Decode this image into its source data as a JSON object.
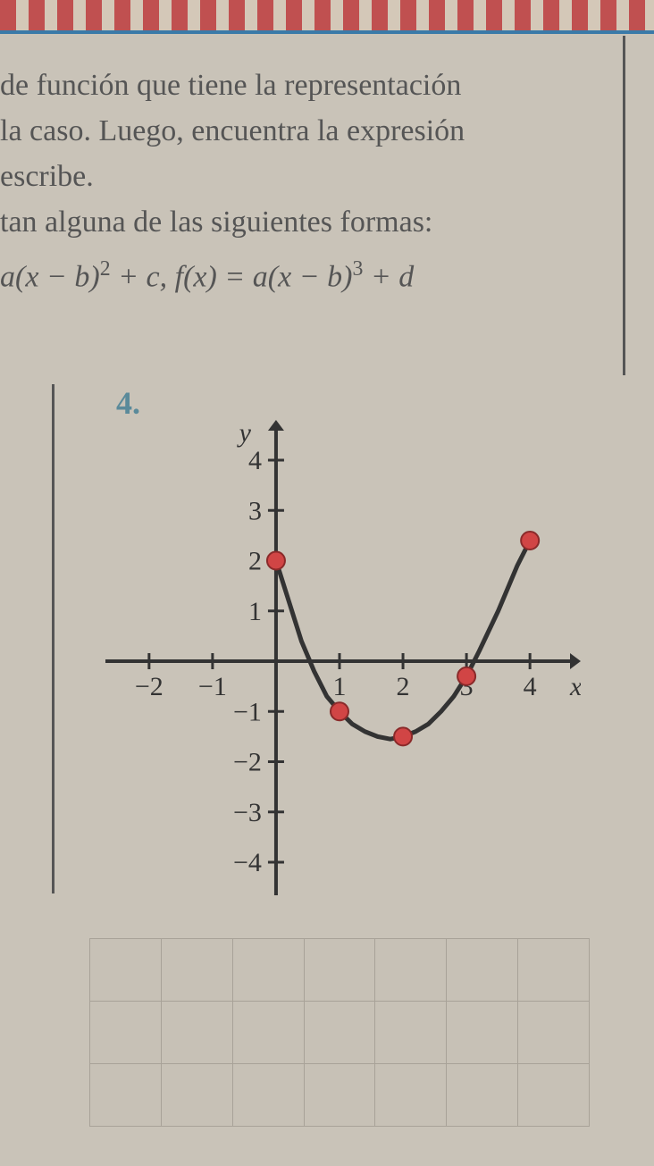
{
  "text": {
    "line1": "de función que tiene la representación",
    "line2": "la caso. Luego, encuentra la expresión",
    "line3": "escribe.",
    "line4": "tan alguna de las siguientes formas:",
    "formula_html": "a(x − b)<sup>2</sup> + c, f(x) = a(x − b)<sup>3</sup> + d"
  },
  "problem_number": "4.",
  "graph": {
    "type": "scatter-line",
    "xlim": [
      -2.8,
      4.8
    ],
    "ylim": [
      -4.8,
      4.8
    ],
    "xtick_labels": [
      "−2",
      "−1",
      "1",
      "2",
      "3",
      "4"
    ],
    "xtick_positions": [
      -2,
      -1,
      1,
      2,
      3,
      4
    ],
    "ytick_labels": [
      "−4",
      "−3",
      "−2",
      "−1",
      "1",
      "2",
      "3",
      "4"
    ],
    "ytick_positions": [
      -4,
      -3,
      -2,
      -1,
      1,
      2,
      3,
      4
    ],
    "x_axis_label": "x",
    "y_axis_label": "y",
    "axis_color": "#333333",
    "tick_fontsize": 30,
    "label_fontsize": 30,
    "curve": {
      "points": [
        [
          0,
          2
        ],
        [
          0.2,
          1.2
        ],
        [
          0.4,
          0.4
        ],
        [
          0.6,
          -0.2
        ],
        [
          0.8,
          -0.7
        ],
        [
          1,
          -1
        ],
        [
          1.2,
          -1.25
        ],
        [
          1.4,
          -1.4
        ],
        [
          1.6,
          -1.5
        ],
        [
          1.8,
          -1.55
        ],
        [
          2,
          -1.5
        ],
        [
          2.2,
          -1.4
        ],
        [
          2.4,
          -1.25
        ],
        [
          2.6,
          -1
        ],
        [
          2.8,
          -0.7
        ],
        [
          3,
          -0.3
        ],
        [
          3.2,
          0.2
        ],
        [
          3.5,
          1.0
        ],
        [
          3.8,
          1.9
        ],
        [
          4,
          2.4
        ]
      ],
      "stroke": "#333333",
      "stroke_width": 5
    },
    "markers": [
      {
        "x": 0,
        "y": 2
      },
      {
        "x": 1,
        "y": -1
      },
      {
        "x": 2,
        "y": -1.5
      },
      {
        "x": 3,
        "y": -0.3
      },
      {
        "x": 4,
        "y": 2.4
      }
    ],
    "marker_color": "#d14545",
    "marker_stroke": "#8a2a2a",
    "marker_radius": 10,
    "background_color": "#c9c3b8"
  },
  "grid": {
    "rows": 3,
    "cols": 7,
    "border_color": "#a8a298"
  }
}
